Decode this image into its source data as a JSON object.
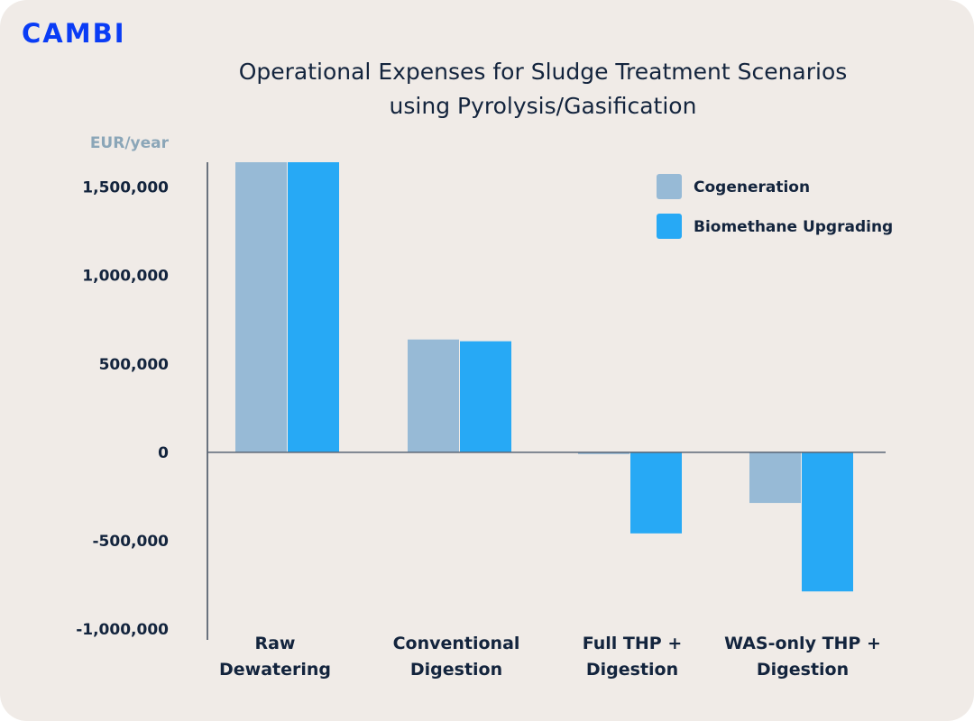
{
  "brand": {
    "logo_text": "CAMBI",
    "logo_color": "#0a3cf5"
  },
  "chart_data": {
    "type": "bar",
    "title_lines": [
      "Operational Expenses for Sludge Treatment Scenarios",
      "using Pyrolysis/Gasification"
    ],
    "ylabel": "EUR/year",
    "xlabel": "",
    "categories": [
      [
        "Raw",
        "Dewatering"
      ],
      [
        "Conventional",
        "Digestion"
      ],
      [
        "Full THP +",
        "Digestion"
      ],
      [
        "WAS-only THP +",
        "Digestion"
      ]
    ],
    "series": [
      {
        "name": "Cogeneration",
        "color": "#97bad6",
        "values": [
          1640000,
          638000,
          -10000,
          -286000
        ]
      },
      {
        "name": "Biomethane Upgrading",
        "color": "#27a9f5",
        "values": [
          1640000,
          628000,
          -458000,
          -786000
        ]
      }
    ],
    "yticks": [
      1500000,
      1000000,
      500000,
      0,
      -500000,
      -1000000
    ],
    "ytick_labels": [
      "1,500,000",
      "1,000,000",
      "500,000",
      "0",
      "-500,000",
      "-1,000,000"
    ],
    "ylim": [
      -1060000,
      1640000
    ],
    "grid": false,
    "legend_position": "top-right"
  }
}
